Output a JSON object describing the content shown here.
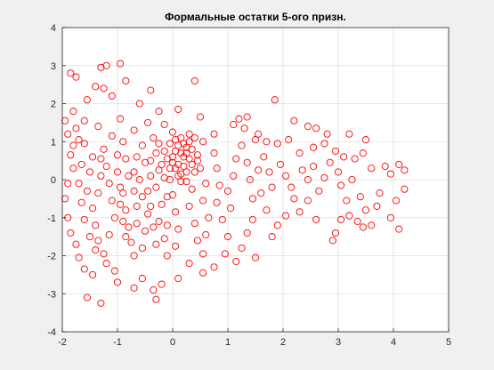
{
  "chart_data": {
    "type": "scatter",
    "title": "Формальные остатки 5-ого призн.",
    "xlabel": "",
    "ylabel": "",
    "xlim": [
      -2,
      5
    ],
    "ylim": [
      -4,
      4
    ],
    "xticks": [
      -2,
      -1,
      0,
      1,
      2,
      3,
      4,
      5
    ],
    "yticks": [
      -4,
      -3,
      -2,
      -1,
      0,
      1,
      2,
      3,
      4
    ],
    "grid": true,
    "legend": "none",
    "marker": "circle",
    "colors": {
      "marker": "#ff0000",
      "background": "#f0f0f0",
      "axes": "#ffffff",
      "grid": "#dfdfdf"
    },
    "series": [
      {
        "points": [
          [
            -1.85,
            2.8
          ],
          [
            -1.75,
            2.7
          ],
          [
            -1.3,
            2.95
          ],
          [
            -1.2,
            3.0
          ],
          [
            -0.95,
            3.05
          ],
          [
            -1.4,
            2.45
          ],
          [
            -1.25,
            2.4
          ],
          [
            -0.85,
            2.6
          ],
          [
            -0.4,
            2.35
          ],
          [
            0.4,
            2.6
          ],
          [
            -1.55,
            2.1
          ],
          [
            -1.1,
            2.2
          ],
          [
            -0.6,
            2.0
          ],
          [
            -0.25,
            1.8
          ],
          [
            0.1,
            1.85
          ],
          [
            -1.8,
            1.8
          ],
          [
            -1.6,
            1.55
          ],
          [
            -1.35,
            1.4
          ],
          [
            -0.95,
            1.6
          ],
          [
            -0.7,
            1.3
          ],
          [
            -0.45,
            1.5
          ],
          [
            -0.15,
            1.45
          ],
          [
            0.5,
            1.65
          ],
          [
            0.75,
            1.2
          ],
          [
            1.1,
            1.45
          ],
          [
            1.3,
            1.35
          ],
          [
            1.55,
            1.2
          ],
          [
            1.85,
            2.1
          ],
          [
            2.2,
            1.55
          ],
          [
            2.45,
            1.4
          ],
          [
            2.6,
            1.35
          ],
          [
            2.8,
            1.2
          ],
          [
            3.2,
            1.2
          ],
          [
            3.5,
            1.05
          ],
          [
            1.2,
            1.6
          ],
          [
            1.35,
            1.65
          ],
          [
            1.5,
            1.05
          ],
          [
            1.7,
            1.0
          ],
          [
            1.9,
            0.95
          ],
          [
            2.1,
            1.05
          ],
          [
            2.3,
            0.7
          ],
          [
            2.55,
            0.85
          ],
          [
            2.75,
            0.95
          ],
          [
            2.95,
            0.75
          ],
          [
            3.1,
            0.6
          ],
          [
            3.3,
            0.55
          ],
          [
            3.45,
            0.7
          ],
          [
            3.85,
            0.35
          ],
          [
            4.1,
            0.4
          ],
          [
            4.2,
            0.25
          ],
          [
            3.95,
            0.15
          ],
          [
            4.2,
            -0.25
          ],
          [
            4.05,
            -0.55
          ],
          [
            3.75,
            -0.35
          ],
          [
            3.95,
            -1.0
          ],
          [
            4.1,
            -1.3
          ],
          [
            3.6,
            -1.2
          ],
          [
            3.45,
            -1.25
          ],
          [
            3.35,
            -1.1
          ],
          [
            3.5,
            -0.8
          ],
          [
            3.15,
            -0.55
          ],
          [
            3.2,
            -0.95
          ],
          [
            3.05,
            -1.05
          ],
          [
            2.95,
            -1.4
          ],
          [
            2.9,
            -1.6
          ],
          [
            2.6,
            -1.05
          ],
          [
            2.45,
            -0.55
          ],
          [
            2.3,
            -0.85
          ],
          [
            2.2,
            -0.5
          ],
          [
            2.05,
            -0.95
          ],
          [
            1.9,
            -1.2
          ],
          [
            1.8,
            -1.5
          ],
          [
            1.7,
            -0.8
          ],
          [
            1.6,
            -0.35
          ],
          [
            1.45,
            -1.05
          ],
          [
            1.35,
            -1.4
          ],
          [
            1.25,
            -1.8
          ],
          [
            1.5,
            -2.05
          ],
          [
            1.15,
            -2.15
          ],
          [
            0.95,
            -1.95
          ],
          [
            0.75,
            -2.3
          ],
          [
            0.55,
            -2.45
          ],
          [
            0.3,
            -2.2
          ],
          [
            0.1,
            -2.6
          ],
          [
            -0.2,
            -2.75
          ],
          [
            -0.35,
            -2.9
          ],
          [
            -0.3,
            -3.15
          ],
          [
            -0.55,
            -2.6
          ],
          [
            -0.7,
            -2.85
          ],
          [
            -1.0,
            -2.7
          ],
          [
            -1.05,
            -2.4
          ],
          [
            -1.2,
            -2.2
          ],
          [
            -1.45,
            -2.5
          ],
          [
            -1.55,
            -3.1
          ],
          [
            -1.3,
            -3.25
          ],
          [
            -1.6,
            -2.35
          ],
          [
            -1.7,
            -2.05
          ],
          [
            -1.75,
            -1.7
          ],
          [
            -1.85,
            -1.4
          ],
          [
            -1.9,
            -1.0
          ],
          [
            -1.95,
            -0.5
          ],
          [
            -1.9,
            -0.1
          ],
          [
            -1.8,
            0.3
          ],
          [
            -1.85,
            0.65
          ],
          [
            -1.7,
            1.05
          ],
          [
            -1.75,
            1.35
          ],
          [
            -1.6,
            0.95
          ],
          [
            -1.45,
            0.6
          ],
          [
            -1.5,
            0.2
          ],
          [
            -1.55,
            -0.3
          ],
          [
            -1.45,
            -0.75
          ],
          [
            -1.4,
            -1.2
          ],
          [
            -1.35,
            -1.6
          ],
          [
            -1.25,
            -1.95
          ],
          [
            -1.15,
            -1.45
          ],
          [
            -1.05,
            -1.0
          ],
          [
            -1.1,
            -0.55
          ],
          [
            -1.15,
            -0.1
          ],
          [
            -1.2,
            0.35
          ],
          [
            -1.25,
            0.8
          ],
          [
            -1.1,
            1.15
          ],
          [
            -0.9,
            1.0
          ],
          [
            -0.85,
            0.55
          ],
          [
            -0.8,
            0.1
          ],
          [
            -0.9,
            -0.35
          ],
          [
            -0.85,
            -0.8
          ],
          [
            -0.8,
            -1.25
          ],
          [
            -0.75,
            -1.65
          ],
          [
            -0.7,
            -2.0
          ],
          [
            -0.55,
            -1.8
          ],
          [
            -0.5,
            -1.35
          ],
          [
            -0.45,
            -0.9
          ],
          [
            -0.55,
            -0.45
          ],
          [
            -0.6,
            0.0
          ],
          [
            -0.5,
            0.45
          ],
          [
            -0.55,
            0.9
          ],
          [
            -0.35,
            1.1
          ],
          [
            -0.3,
            0.7
          ],
          [
            -0.25,
            0.25
          ],
          [
            -0.3,
            -0.2
          ],
          [
            -0.2,
            -0.65
          ],
          [
            -0.25,
            -1.1
          ],
          [
            -0.15,
            -1.55
          ],
          [
            -0.1,
            -2.0
          ],
          [
            0.05,
            -1.75
          ],
          [
            0.1,
            -1.3
          ],
          [
            0.05,
            -0.85
          ],
          [
            0.0,
            -0.4
          ],
          [
            0.15,
            -0.05
          ],
          [
            0.1,
            0.4
          ],
          [
            0.05,
            0.75
          ],
          [
            0.15,
            1.1
          ],
          [
            0.25,
            0.85
          ],
          [
            0.3,
            0.55
          ],
          [
            0.25,
            0.2
          ],
          [
            0.35,
            -0.25
          ],
          [
            0.3,
            -0.7
          ],
          [
            0.4,
            -1.15
          ],
          [
            0.45,
            -1.6
          ],
          [
            0.55,
            -1.95
          ],
          [
            0.6,
            -1.45
          ],
          [
            0.65,
            -1.0
          ],
          [
            0.55,
            -0.55
          ],
          [
            0.6,
            -0.1
          ],
          [
            0.5,
            0.3
          ],
          [
            0.45,
            0.65
          ],
          [
            0.55,
            1.0
          ],
          [
            0.75,
            0.7
          ],
          [
            0.8,
            0.3
          ],
          [
            0.85,
            -0.15
          ],
          [
            0.8,
            -0.6
          ],
          [
            0.9,
            -1.05
          ],
          [
            1.0,
            -1.5
          ],
          [
            1.05,
            -0.75
          ],
          [
            1.0,
            -0.3
          ],
          [
            1.1,
            0.1
          ],
          [
            1.15,
            0.55
          ],
          [
            1.25,
            0.9
          ],
          [
            1.35,
            0.45
          ],
          [
            1.4,
            0.0
          ],
          [
            1.45,
            -0.5
          ],
          [
            1.55,
            0.25
          ],
          [
            1.65,
            0.6
          ],
          [
            1.75,
            0.2
          ],
          [
            1.8,
            -0.2
          ],
          [
            1.95,
            0.4
          ],
          [
            2.05,
            0.1
          ],
          [
            2.15,
            -0.2
          ],
          [
            2.35,
            0.25
          ],
          [
            2.45,
            0.0
          ],
          [
            2.55,
            0.35
          ],
          [
            2.65,
            -0.3
          ],
          [
            2.75,
            0.05
          ],
          [
            2.85,
            0.45
          ],
          [
            3.0,
            0.2
          ],
          [
            3.05,
            -0.15
          ],
          [
            3.25,
            0.0
          ],
          [
            3.4,
            -0.45
          ],
          [
            3.6,
            0.3
          ],
          [
            3.7,
            -0.7
          ],
          [
            -1.95,
            1.55
          ],
          [
            -1.9,
            1.2
          ],
          [
            -1.8,
            0.9
          ],
          [
            -1.65,
            0.4
          ],
          [
            -1.7,
            -0.1
          ],
          [
            -1.65,
            -0.6
          ],
          [
            -1.6,
            -1.05
          ],
          [
            -1.5,
            -1.5
          ],
          [
            -1.4,
            -1.85
          ],
          [
            -1.35,
            -0.35
          ],
          [
            -1.3,
            0.1
          ],
          [
            -1.3,
            0.55
          ],
          [
            -1.0,
            0.65
          ],
          [
            -1.0,
            0.2
          ],
          [
            -0.95,
            -0.2
          ],
          [
            -0.95,
            -0.65
          ],
          [
            -0.9,
            -1.1
          ],
          [
            -0.85,
            -1.5
          ],
          [
            -0.65,
            -1.15
          ],
          [
            -0.65,
            -0.7
          ],
          [
            -0.7,
            -0.3
          ],
          [
            -0.7,
            0.2
          ],
          [
            -0.65,
            0.6
          ],
          [
            -0.4,
            0.5
          ],
          [
            -0.4,
            0.1
          ],
          [
            -0.45,
            -0.3
          ],
          [
            -0.4,
            -0.7
          ],
          [
            -0.35,
            -1.25
          ],
          [
            -0.3,
            -1.7
          ],
          [
            -0.1,
            -1.2
          ],
          [
            -0.1,
            -0.45
          ],
          [
            -0.15,
            0.05
          ],
          [
            -0.1,
            0.55
          ],
          [
            -0.05,
            0.95
          ],
          [
            0.0,
            1.25
          ],
          [
            0.0,
            0.6
          ],
          [
            0.05,
            0.3
          ],
          [
            -0.05,
            0.0
          ],
          [
            0.2,
            0.6
          ],
          [
            0.2,
            0.35
          ],
          [
            0.15,
            0.15
          ],
          [
            0.25,
            -0.05
          ],
          [
            0.35,
            0.4
          ],
          [
            0.35,
            0.8
          ],
          [
            0.4,
            1.1
          ],
          [
            0.1,
            0.9
          ],
          [
            0.2,
            0.95
          ],
          [
            0.3,
            1.0
          ],
          [
            0.15,
            0.7
          ],
          [
            0.0,
            0.45
          ],
          [
            0.25,
            0.7
          ],
          [
            0.45,
            0.5
          ],
          [
            0.4,
            0.2
          ],
          [
            0.1,
            0.1
          ],
          [
            -0.05,
            0.3
          ],
          [
            -0.2,
            0.4
          ],
          [
            -0.15,
            0.75
          ],
          [
            -0.25,
            0.95
          ],
          [
            0.05,
            1.05
          ],
          [
            0.3,
            1.2
          ]
        ]
      }
    ]
  }
}
